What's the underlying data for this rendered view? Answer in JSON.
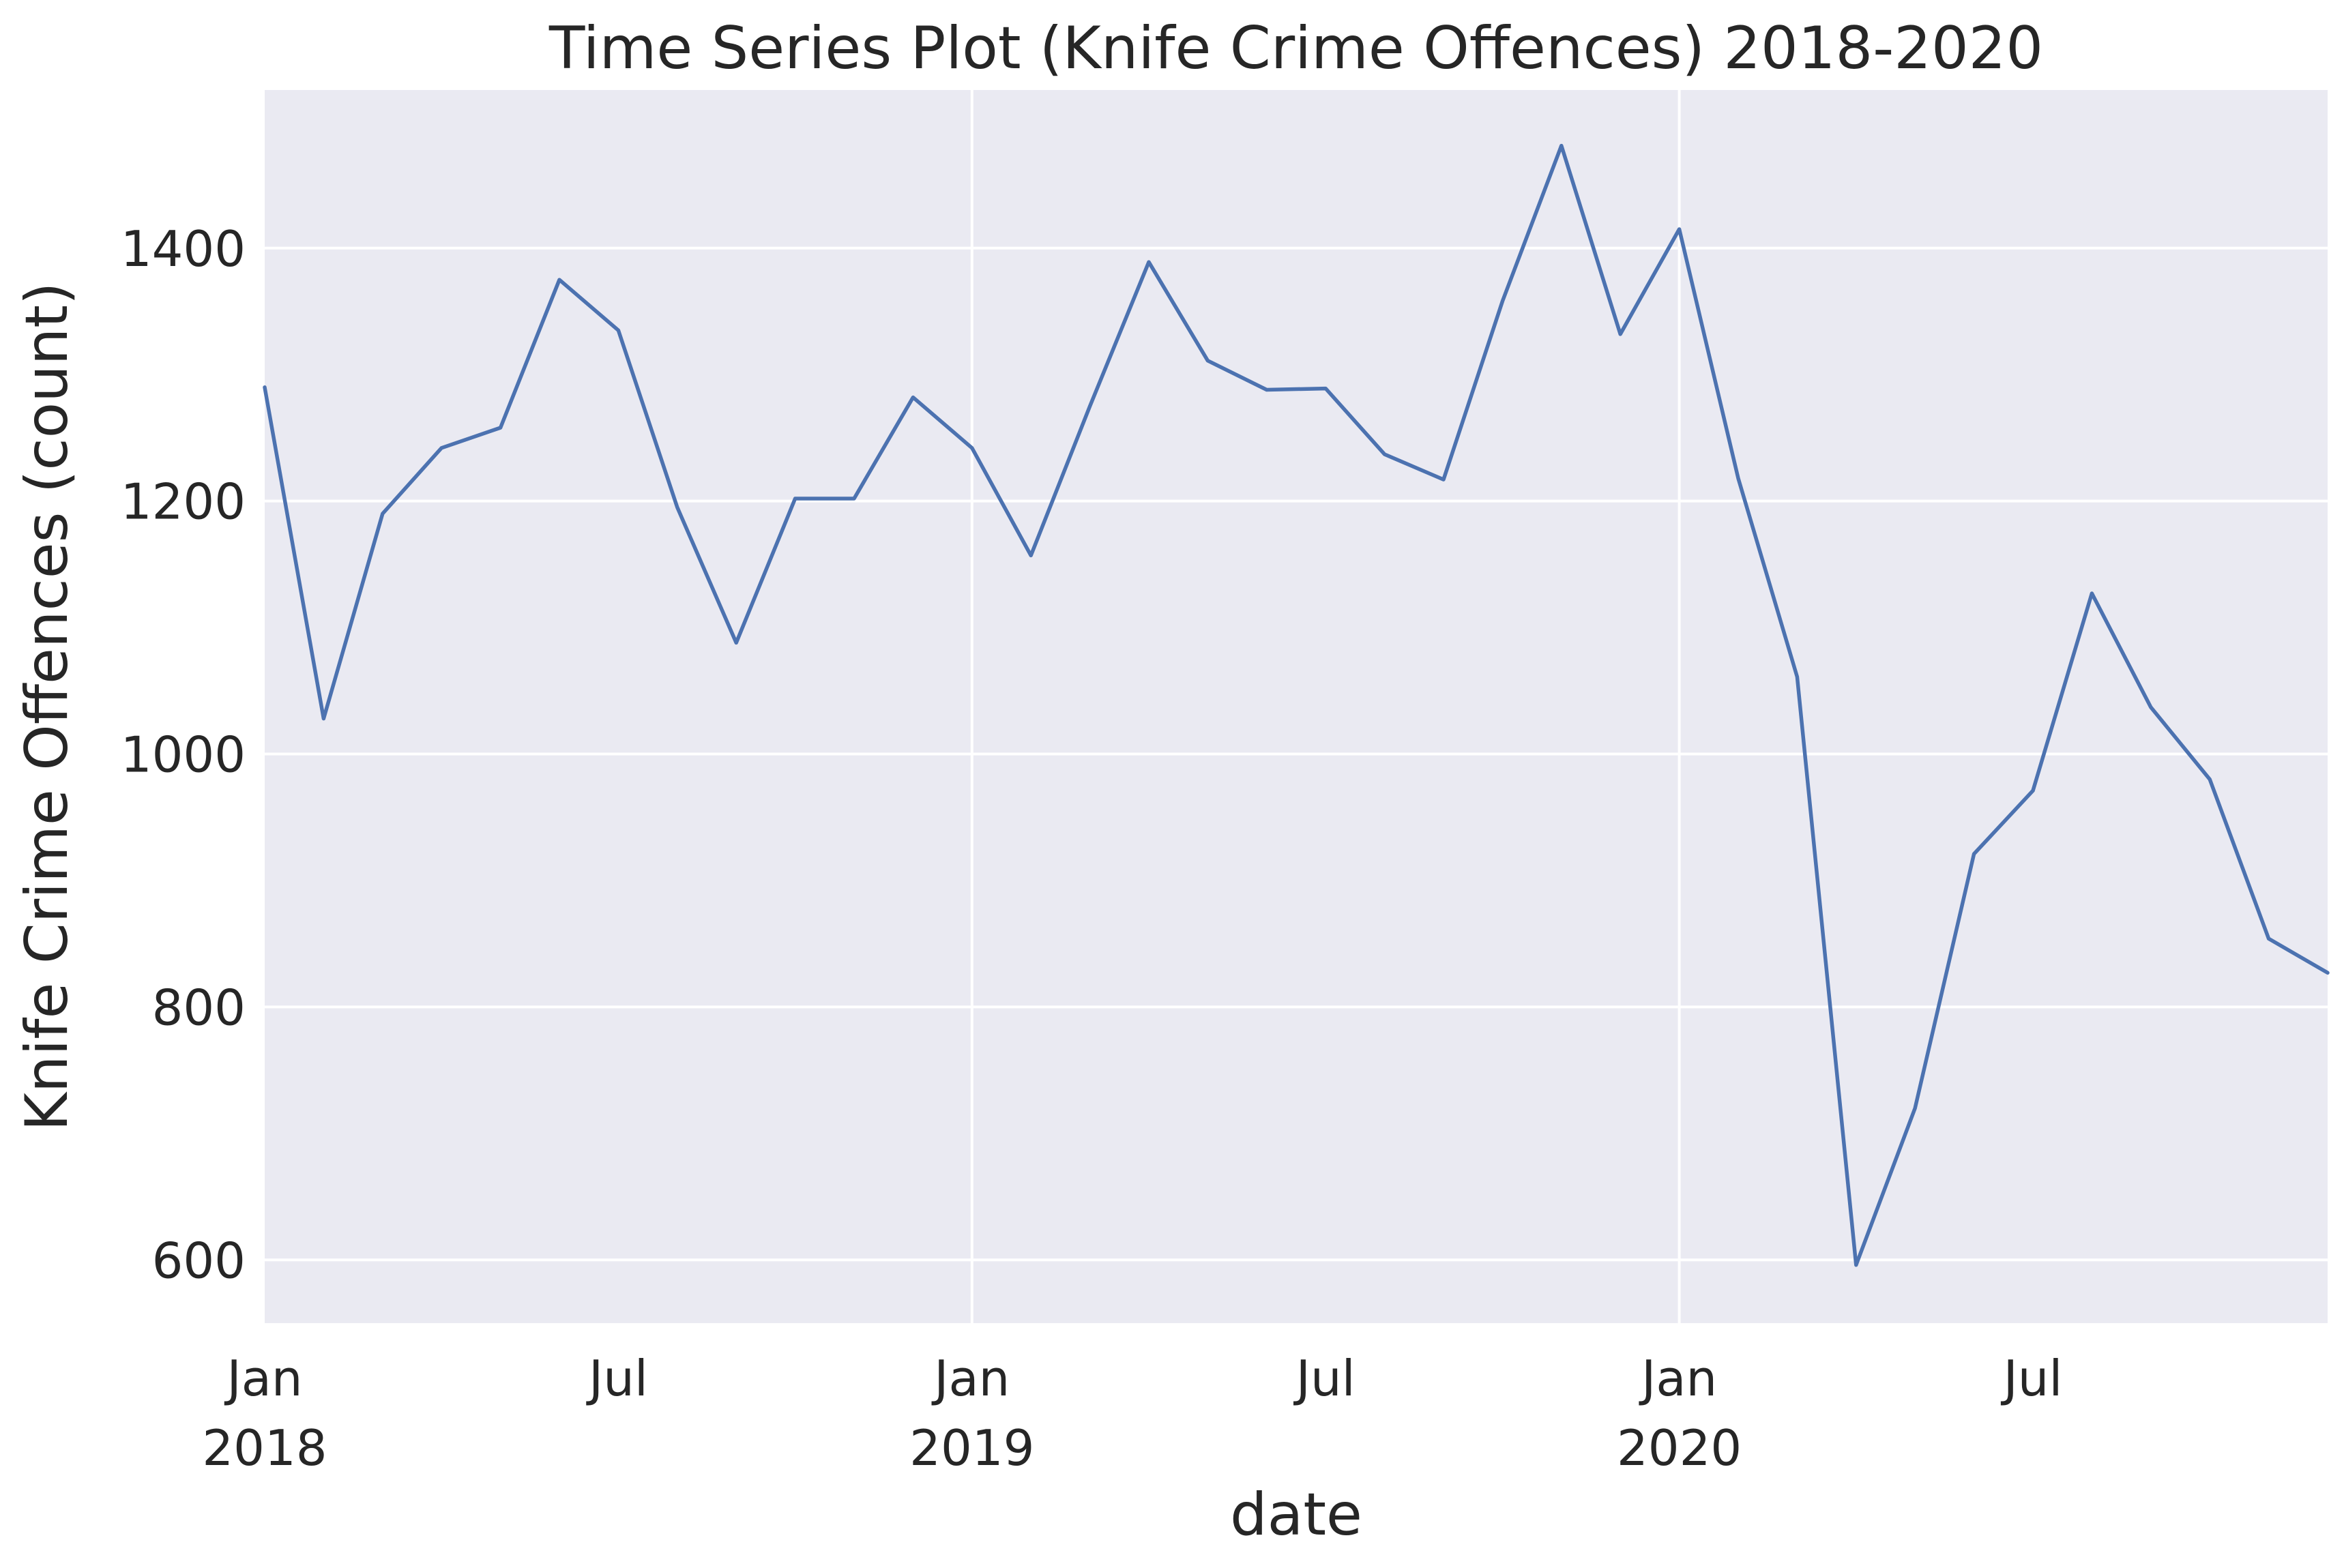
{
  "chart_data": {
    "type": "line",
    "title": "Time Series Plot (Knife Crime Offences) 2018-2020",
    "xlabel": "date",
    "ylabel": "Knife Crime Offences (count)",
    "x": [
      "2018-01",
      "2018-02",
      "2018-03",
      "2018-04",
      "2018-05",
      "2018-06",
      "2018-07",
      "2018-08",
      "2018-09",
      "2018-10",
      "2018-11",
      "2018-12",
      "2019-01",
      "2019-02",
      "2019-03",
      "2019-04",
      "2019-05",
      "2019-06",
      "2019-07",
      "2019-08",
      "2019-09",
      "2019-10",
      "2019-11",
      "2019-12",
      "2020-01",
      "2020-02",
      "2020-03",
      "2020-04",
      "2020-05",
      "2020-06",
      "2020-07",
      "2020-08",
      "2020-09",
      "2020-10",
      "2020-11",
      "2020-12"
    ],
    "series": [
      {
        "values": [
          1290,
          1028,
          1190,
          1242,
          1258,
          1375,
          1335,
          1195,
          1088,
          1202,
          1202,
          1282,
          1242,
          1157,
          1275,
          1389,
          1311,
          1288,
          1289,
          1237,
          1217,
          1358,
          1481,
          1332,
          1415,
          1218,
          1061,
          596,
          720,
          921,
          971,
          1127,
          1037,
          980,
          854,
          827
        ],
        "color": "#4c72b0"
      }
    ],
    "xlim": [
      "2018-01",
      "2020-12"
    ],
    "ylim": [
      550,
      1525
    ],
    "yticks": [
      600,
      800,
      1000,
      1200,
      1400
    ],
    "xticks": [
      {
        "at": "2018-01",
        "line1": "Jan",
        "line2": "2018"
      },
      {
        "at": "2018-07",
        "line1": "Jul",
        "line2": ""
      },
      {
        "at": "2019-01",
        "line1": "Jan",
        "line2": "2019"
      },
      {
        "at": "2019-07",
        "line1": "Jul",
        "line2": ""
      },
      {
        "at": "2020-01",
        "line1": "Jan",
        "line2": "2020"
      },
      {
        "at": "2020-07",
        "line1": "Jul",
        "line2": ""
      }
    ],
    "major_x_gridlines": [
      "2019-01",
      "2020-01"
    ],
    "grid": true,
    "legend": "none",
    "background_color": "#eaeaf2",
    "grid_color": "#ffffff"
  }
}
